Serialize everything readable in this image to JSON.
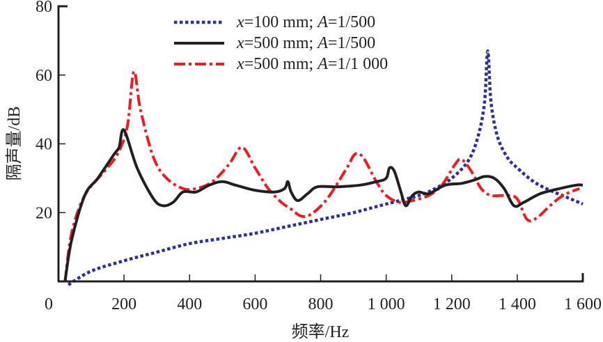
{
  "chart_data": {
    "type": "line",
    "title": "",
    "xlabel": "频率/Hz",
    "ylabel": "隔声量/dB",
    "xlim": [
      0,
      1600
    ],
    "ylim": [
      0,
      80
    ],
    "x_ticks": [
      0,
      200,
      400,
      600,
      800,
      1000,
      1200,
      1400,
      1600
    ],
    "x_tick_labels": [
      "0",
      "200",
      "400",
      "600",
      "800",
      "1 000",
      "1 200",
      "1 400",
      "1 600"
    ],
    "y_ticks": [
      20,
      40,
      60,
      80
    ],
    "y_tick_labels": [
      "20",
      "40",
      "60",
      "80"
    ],
    "origin_label": "0",
    "grid": false,
    "legend_position": "top-center",
    "series": [
      {
        "name": "x=100 mm; A=1/500",
        "legend_parts": [
          "x",
          "=100 mm;  ",
          "A",
          "=1/500"
        ],
        "color": "#2e3192",
        "style": "dotted",
        "points": [
          [
            30,
            -1
          ],
          [
            100,
            3
          ],
          [
            200,
            6
          ],
          [
            300,
            8.5
          ],
          [
            400,
            11
          ],
          [
            500,
            12.5
          ],
          [
            600,
            14
          ],
          [
            700,
            16
          ],
          [
            800,
            18
          ],
          [
            900,
            20
          ],
          [
            1000,
            22.5
          ],
          [
            1100,
            25
          ],
          [
            1150,
            27
          ],
          [
            1200,
            30
          ],
          [
            1250,
            35
          ],
          [
            1280,
            42
          ],
          [
            1300,
            52
          ],
          [
            1310,
            67
          ],
          [
            1320,
            52
          ],
          [
            1340,
            42
          ],
          [
            1370,
            36
          ],
          [
            1400,
            33
          ],
          [
            1450,
            29
          ],
          [
            1500,
            26.5
          ],
          [
            1550,
            24.5
          ],
          [
            1600,
            22.5
          ]
        ]
      },
      {
        "name": "x=500 mm; A=1/500",
        "legend_parts": [
          "x",
          "=500 mm;  ",
          "A",
          "=1/500"
        ],
        "color": "#231f20",
        "style": "solid",
        "points": [
          [
            20,
            0
          ],
          [
            40,
            12
          ],
          [
            80,
            25
          ],
          [
            120,
            30
          ],
          [
            170,
            37
          ],
          [
            185,
            39
          ],
          [
            200,
            44
          ],
          [
            240,
            33
          ],
          [
            290,
            24
          ],
          [
            320,
            22
          ],
          [
            350,
            23
          ],
          [
            380,
            26
          ],
          [
            420,
            26
          ],
          [
            460,
            28
          ],
          [
            500,
            29
          ],
          [
            540,
            28
          ],
          [
            600,
            26.5
          ],
          [
            660,
            26
          ],
          [
            690,
            27
          ],
          [
            700,
            29
          ],
          [
            710,
            26
          ],
          [
            730,
            23.5
          ],
          [
            760,
            25.5
          ],
          [
            790,
            27.5
          ],
          [
            850,
            27.5
          ],
          [
            920,
            28
          ],
          [
            970,
            29
          ],
          [
            1000,
            30
          ],
          [
            1010,
            33
          ],
          [
            1025,
            32
          ],
          [
            1045,
            26
          ],
          [
            1060,
            22
          ],
          [
            1080,
            25
          ],
          [
            1100,
            26
          ],
          [
            1130,
            25.5
          ],
          [
            1180,
            28
          ],
          [
            1230,
            28.5
          ],
          [
            1270,
            29.5
          ],
          [
            1300,
            30.5
          ],
          [
            1330,
            30
          ],
          [
            1360,
            27
          ],
          [
            1390,
            22
          ],
          [
            1420,
            23
          ],
          [
            1470,
            25.5
          ],
          [
            1530,
            27
          ],
          [
            1580,
            28
          ],
          [
            1600,
            28
          ]
        ]
      },
      {
        "name": "x=500 mm; A=1/1 000",
        "legend_parts": [
          "x",
          "=500 mm;  ",
          "A",
          "=1/1 000"
        ],
        "color": "#ed1c24",
        "style": "dash-dot",
        "points": [
          [
            20,
            0
          ],
          [
            40,
            14
          ],
          [
            80,
            25
          ],
          [
            140,
            32
          ],
          [
            180,
            37
          ],
          [
            210,
            45
          ],
          [
            230,
            61
          ],
          [
            250,
            50
          ],
          [
            290,
            36
          ],
          [
            330,
            30
          ],
          [
            380,
            27
          ],
          [
            420,
            27
          ],
          [
            470,
            29
          ],
          [
            520,
            34
          ],
          [
            560,
            39
          ],
          [
            600,
            33
          ],
          [
            640,
            27
          ],
          [
            680,
            23
          ],
          [
            710,
            21
          ],
          [
            740,
            19
          ],
          [
            770,
            19.5
          ],
          [
            820,
            24
          ],
          [
            880,
            33
          ],
          [
            905,
            37
          ],
          [
            930,
            36
          ],
          [
            970,
            29
          ],
          [
            1000,
            25
          ],
          [
            1040,
            23
          ],
          [
            1080,
            23.5
          ],
          [
            1130,
            25
          ],
          [
            1170,
            28
          ],
          [
            1210,
            34
          ],
          [
            1230,
            35.5
          ],
          [
            1260,
            32
          ],
          [
            1290,
            27
          ],
          [
            1320,
            25
          ],
          [
            1370,
            25
          ],
          [
            1400,
            24
          ],
          [
            1430,
            18
          ],
          [
            1460,
            18.5
          ],
          [
            1500,
            22
          ],
          [
            1540,
            25
          ],
          [
            1590,
            27
          ]
        ]
      }
    ]
  }
}
